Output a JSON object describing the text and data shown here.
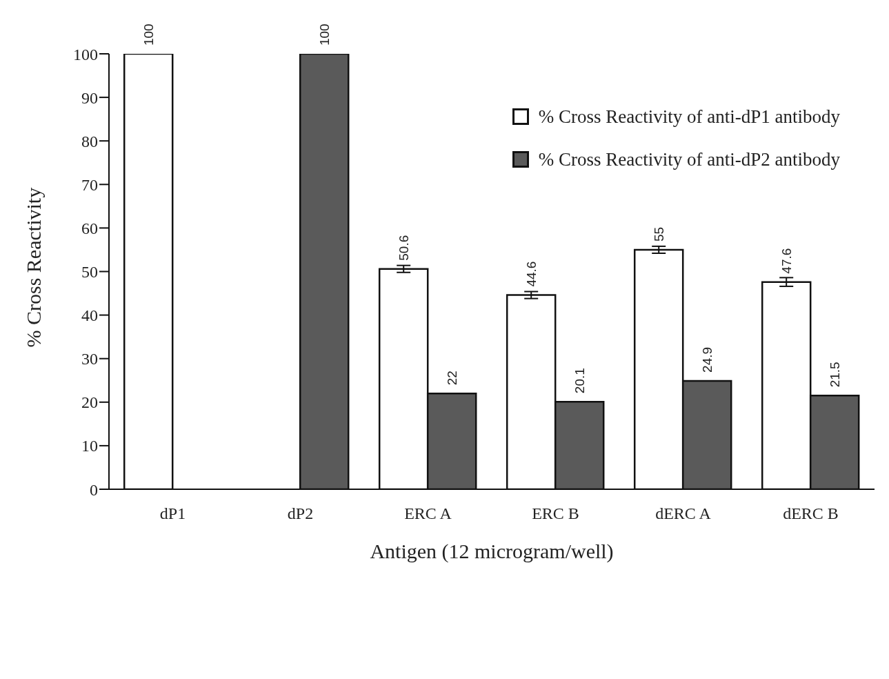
{
  "chart_data": {
    "type": "bar",
    "xlabel": "Antigen (12 microgram/well)",
    "ylabel": "% Cross Reactivity",
    "categories": [
      "dP1",
      "dP2",
      "ERC A",
      "ERC B",
      "dERC A",
      "dERC B"
    ],
    "series": [
      {
        "name": "% Cross Reactivity of anti-dP1 antibody",
        "color": "#ffffff",
        "values": [
          100,
          null,
          50.6,
          44.6,
          55,
          47.6
        ],
        "errors": [
          null,
          null,
          0.8,
          0.8,
          0.8,
          1
        ]
      },
      {
        "name": "% Cross Reactivity of anti-dP2 antibody",
        "color": "#5a5a5a",
        "values": [
          null,
          100,
          22,
          20.1,
          24.9,
          21.5
        ]
      }
    ],
    "ylim": [
      0,
      100
    ],
    "yticks": [
      0,
      10,
      20,
      30,
      40,
      50,
      60,
      70,
      80,
      90,
      100
    ],
    "grid": false,
    "legend": "top right",
    "data_labels": true
  }
}
